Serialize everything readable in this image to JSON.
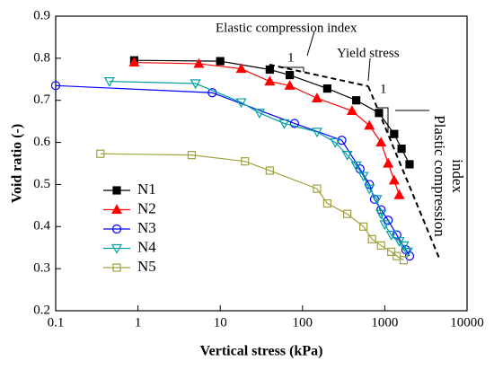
{
  "chart_data": {
    "type": "line",
    "xlabel": "Vertical stress (kPa)",
    "ylabel": "Void ratio (-)",
    "xscale": "log",
    "xlim": [
      0.1,
      10000
    ],
    "xticks": [
      0.1,
      1,
      10,
      100,
      1000,
      10000
    ],
    "ylim": [
      0.2,
      0.9
    ],
    "yticks": [
      0.2,
      0.3,
      0.4,
      0.5,
      0.6,
      0.7,
      0.8,
      0.9
    ],
    "legend": "lower left",
    "annotations": [
      "Elastic compression index",
      "Yield stress",
      "1",
      "1",
      "Plastic compression",
      "index"
    ],
    "series": [
      {
        "name": "N1",
        "color": "#000000",
        "marker": "square-filled",
        "x": [
          0.9,
          10,
          40,
          70,
          200,
          450,
          850,
          1300,
          1600,
          2000
        ],
        "values": [
          0.795,
          0.793,
          0.773,
          0.76,
          0.728,
          0.7,
          0.67,
          0.62,
          0.585,
          0.548
        ]
      },
      {
        "name": "N2",
        "color": "#ff0000",
        "marker": "triangle-filled",
        "x": [
          0.9,
          5.5,
          18,
          40,
          70,
          150,
          400,
          650,
          900,
          1100,
          1300,
          1500
        ],
        "values": [
          0.79,
          0.787,
          0.775,
          0.745,
          0.735,
          0.705,
          0.675,
          0.64,
          0.6,
          0.55,
          0.51,
          0.475
        ]
      },
      {
        "name": "N3",
        "color": "#0000ff",
        "marker": "circle-open",
        "x": [
          0.1,
          8,
          80,
          300,
          500,
          650,
          750,
          900,
          1100,
          1400,
          1800,
          2000
        ],
        "values": [
          0.735,
          0.718,
          0.645,
          0.605,
          0.537,
          0.5,
          0.465,
          0.44,
          0.415,
          0.38,
          0.345,
          0.33
        ]
      },
      {
        "name": "N4",
        "color": "#00a0a0",
        "marker": "triangle-down-open",
        "x": [
          0.45,
          5,
          18,
          30,
          60,
          150,
          250,
          350,
          450,
          550,
          650,
          800,
          900,
          1000,
          1200,
          1500,
          1700,
          1900
        ],
        "values": [
          0.745,
          0.74,
          0.695,
          0.67,
          0.645,
          0.625,
          0.6,
          0.57,
          0.545,
          0.52,
          0.49,
          0.465,
          0.43,
          0.405,
          0.38,
          0.365,
          0.355,
          0.34
        ]
      },
      {
        "name": "N5",
        "color": "#a0a040",
        "marker": "square-open",
        "x": [
          0.35,
          4.5,
          20,
          40,
          150,
          200,
          350,
          550,
          700,
          900,
          1200,
          1400,
          1700
        ],
        "values": [
          0.573,
          0.57,
          0.555,
          0.533,
          0.49,
          0.455,
          0.43,
          0.4,
          0.37,
          0.355,
          0.34,
          0.33,
          0.32
        ]
      }
    ]
  }
}
